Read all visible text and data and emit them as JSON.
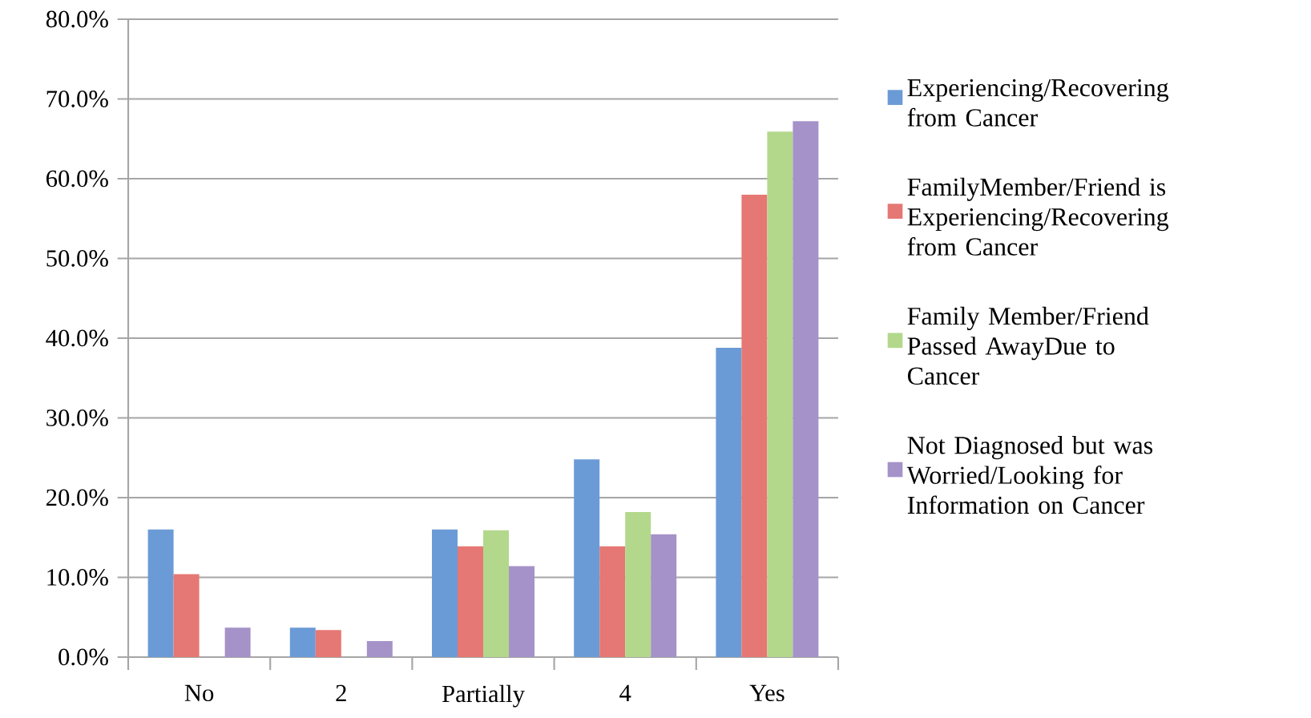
{
  "chart_data": {
    "type": "bar",
    "categories": [
      "No",
      "2",
      "Partially",
      "4",
      "Yes"
    ],
    "series": [
      {
        "name": "Experiencing/Recovering from Cancer",
        "color": "#6b9bd6",
        "values": [
          16.0,
          3.7,
          16.0,
          24.8,
          38.8
        ]
      },
      {
        "name": "FamilyMember/Friend is Experiencing/Recovering from Cancer",
        "color": "#e57874",
        "values": [
          10.4,
          3.4,
          13.9,
          13.9,
          58.0
        ]
      },
      {
        "name": "Family Member/Friend Passed AwayDue to Cancer",
        "color": "#b3d88c",
        "values": [
          0,
          0,
          15.9,
          18.2,
          65.9
        ]
      },
      {
        "name": "Not Diagnosed but was Worried/Looking for Information on Cancer",
        "color": "#a592c8",
        "values": [
          3.7,
          2.0,
          11.4,
          15.4,
          67.2
        ]
      }
    ],
    "ylim": [
      0,
      80
    ],
    "yticks": [
      {
        "value": 0,
        "label": "0.0%"
      },
      {
        "value": 10,
        "label": "10.0%"
      },
      {
        "value": 20,
        "label": "20.0%"
      },
      {
        "value": 30,
        "label": "30.0%"
      },
      {
        "value": 40,
        "label": "40.0%"
      },
      {
        "value": 50,
        "label": "50.0%"
      },
      {
        "value": 60,
        "label": "60.0%"
      },
      {
        "value": 70,
        "label": "70.0%"
      },
      {
        "value": 80,
        "label": "80.0%"
      }
    ],
    "grid": "y",
    "legend": "right"
  }
}
